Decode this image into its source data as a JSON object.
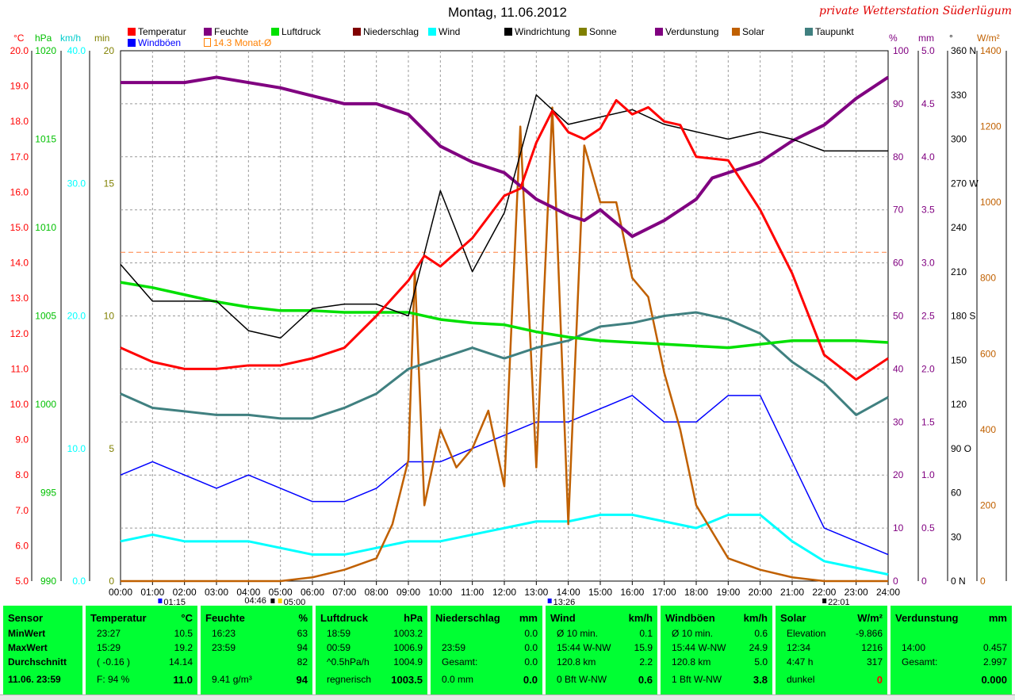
{
  "title": "Montag, 11.06.2012",
  "station": "private Wetterstation Süderlügum",
  "legend": [
    {
      "label": "Temperatur",
      "color": "#ff0000"
    },
    {
      "label": "Feuchte",
      "color": "#800080"
    },
    {
      "label": "Luftdruck",
      "color": "#00e000"
    },
    {
      "label": "Niederschlag",
      "color": "#800000"
    },
    {
      "label": "Wind",
      "color": "#00ffff"
    },
    {
      "label": "Windrichtung",
      "color": "#000000"
    },
    {
      "label": "Sonne",
      "color": "#808000"
    },
    {
      "label": "Verdunstung",
      "color": "#800080"
    },
    {
      "label": "Solar",
      "color": "#c06000"
    },
    {
      "label": "Taupunkt",
      "color": "#408080"
    },
    {
      "label": "Windböen",
      "color": "#0000ff"
    },
    {
      "label": "14.3 Monat-Ø",
      "color": "#ff8000"
    }
  ],
  "units": {
    "temp": "°C",
    "pressure": "hPa",
    "wind": "km/h",
    "sun": "min",
    "humidity": "%",
    "rain": "mm",
    "dir": "°",
    "solar": "W/m²"
  },
  "chart_data": {
    "type": "line",
    "x_ticks": [
      "00:00",
      "01:00",
      "02:00",
      "03:00",
      "04:00",
      "05:00",
      "06:00",
      "07:00",
      "08:00",
      "09:00",
      "10:00",
      "11:00",
      "12:00",
      "13:00",
      "14:00",
      "15:00",
      "16:00",
      "17:00",
      "18:00",
      "19:00",
      "20:00",
      "21:00",
      "22:00",
      "23:00",
      "24:00"
    ],
    "x_markers": [
      "01:15",
      "04:46",
      "05:00",
      "13:26",
      "22:01"
    ],
    "axes": {
      "temp": {
        "ticks": [
          "5.0",
          "6.0",
          "7.0",
          "8.0",
          "9.0",
          "10.0",
          "11.0",
          "12.0",
          "13.0",
          "14.0",
          "15.0",
          "16.0",
          "17.0",
          "18.0",
          "19.0",
          "20.0"
        ],
        "ylim": [
          5,
          20
        ],
        "color": "#ff0000"
      },
      "pressure": {
        "ticks": [
          "990",
          "995",
          "1000",
          "1005",
          "1010",
          "1015",
          "1020"
        ],
        "ylim": [
          990,
          1020
        ],
        "color": "#00c000"
      },
      "wind": {
        "ticks": [
          "0.0",
          "10.0",
          "20.0",
          "30.0",
          "40.0"
        ],
        "ylim": [
          0,
          40
        ],
        "color": "#00ffff"
      },
      "sun": {
        "ticks": [
          "0",
          "5",
          "10",
          "15",
          "20"
        ],
        "ylim": [
          0,
          20
        ],
        "color": "#808000"
      },
      "humidity": {
        "ticks": [
          "0",
          "10",
          "20",
          "30",
          "40",
          "50",
          "60",
          "70",
          "80",
          "90",
          "100"
        ],
        "ylim": [
          0,
          100
        ],
        "color": "#800080"
      },
      "rain": {
        "ticks": [
          "0",
          "0.5",
          "1.0",
          "1.5",
          "2.0",
          "2.5",
          "3.0",
          "3.5",
          "4.0",
          "4.5",
          "5.0"
        ],
        "ylim": [
          0,
          5
        ],
        "color": "#800080"
      },
      "dir": {
        "ticks": [
          "0",
          "30",
          "60",
          "90",
          "120",
          "150",
          "180",
          "210",
          "240",
          "270",
          "300",
          "330",
          "360"
        ],
        "labels": [
          "N",
          "",
          "",
          "O",
          "",
          "",
          "S",
          "",
          "",
          "W",
          "",
          "",
          "N"
        ],
        "ylim": [
          0,
          360
        ],
        "color": "#000000"
      },
      "solar": {
        "ticks": [
          "0",
          "200",
          "400",
          "600",
          "800",
          "1000",
          "1200",
          "1400"
        ],
        "ylim": [
          0,
          1400
        ],
        "color": "#c06000"
      }
    },
    "month_avg_temp": 14.3,
    "series": [
      {
        "name": "Temperatur",
        "axis": "temp",
        "color": "#ff0000",
        "x": [
          0,
          1,
          2,
          3,
          4,
          5,
          6,
          7,
          8,
          9,
          9.5,
          10,
          11,
          12,
          12.5,
          13,
          13.5,
          14,
          14.5,
          15,
          15.5,
          16,
          16.5,
          17,
          17.5,
          18,
          19,
          20,
          21,
          22,
          23,
          24
        ],
        "y": [
          11.6,
          11.2,
          11.0,
          11.0,
          11.1,
          11.1,
          11.3,
          11.6,
          12.5,
          13.5,
          14.2,
          13.9,
          14.7,
          15.9,
          16.1,
          17.4,
          18.3,
          17.7,
          17.5,
          17.8,
          18.6,
          18.2,
          18.4,
          18.0,
          17.9,
          17.0,
          16.9,
          15.5,
          13.7,
          11.4,
          10.7,
          11.3
        ]
      },
      {
        "name": "Feuchte",
        "axis": "humidity",
        "color": "#800080",
        "x": [
          0,
          2,
          3,
          5,
          7,
          8,
          9,
          10,
          11,
          12,
          13,
          14,
          14.5,
          15,
          16,
          17,
          18,
          18.5,
          19,
          20,
          21,
          22,
          23,
          24
        ],
        "y": [
          94,
          94,
          95,
          93,
          90,
          90,
          88,
          82,
          79,
          77,
          72,
          69,
          68,
          70,
          65,
          68,
          72,
          76,
          77,
          79,
          83,
          86,
          91,
          95
        ]
      },
      {
        "name": "Luftdruck",
        "axis": "pressure",
        "color": "#00e000",
        "x": [
          0,
          1,
          2,
          3,
          4,
          5,
          6,
          7,
          8,
          9,
          10,
          11,
          12,
          13,
          14,
          15,
          16,
          17,
          18,
          19,
          20,
          21,
          22,
          23,
          24
        ],
        "y": [
          1006.9,
          1006.6,
          1006.2,
          1005.8,
          1005.5,
          1005.3,
          1005.3,
          1005.2,
          1005.2,
          1005.2,
          1004.8,
          1004.6,
          1004.5,
          1004.1,
          1003.8,
          1003.6,
          1003.5,
          1003.4,
          1003.3,
          1003.2,
          1003.4,
          1003.6,
          1003.6,
          1003.6,
          1003.5
        ]
      },
      {
        "name": "Taupunkt",
        "axis": "temp",
        "color": "#408080",
        "x": [
          0,
          1,
          2,
          3,
          4,
          5,
          6,
          7,
          8,
          9,
          10,
          11,
          12,
          13,
          14,
          15,
          16,
          17,
          18,
          19,
          20,
          21,
          22,
          23,
          24
        ],
        "y": [
          10.3,
          9.9,
          9.8,
          9.7,
          9.7,
          9.6,
          9.6,
          9.9,
          10.3,
          11.0,
          11.3,
          11.6,
          11.3,
          11.6,
          11.8,
          12.2,
          12.3,
          12.5,
          12.6,
          12.4,
          12.0,
          11.2,
          10.6,
          9.7,
          10.2
        ]
      },
      {
        "name": "Windrichtung",
        "axis": "dir",
        "color": "#000000",
        "x": [
          0,
          1,
          2,
          3,
          4,
          5,
          6,
          7,
          8,
          9,
          10,
          11,
          12,
          13,
          14,
          15,
          16,
          17,
          18,
          19,
          20,
          21,
          22,
          23,
          24
        ],
        "y": [
          215,
          190,
          190,
          190,
          170,
          165,
          185,
          188,
          188,
          180,
          265,
          210,
          250,
          330,
          310,
          315,
          320,
          310,
          305,
          300,
          305,
          300,
          292,
          292,
          292
        ]
      },
      {
        "name": "Solar",
        "axis": "solar",
        "color": "#c06000",
        "x": [
          0,
          5,
          6,
          7,
          8,
          8.5,
          9,
          9.2,
          9.5,
          10,
          10.5,
          11,
          11.5,
          12,
          12.5,
          13,
          13.5,
          14,
          14.5,
          15,
          15.5,
          16,
          16.5,
          17,
          17.5,
          18,
          19,
          20,
          21,
          22,
          23,
          24
        ],
        "y": [
          0,
          0,
          10,
          30,
          60,
          150,
          320,
          820,
          200,
          400,
          300,
          350,
          450,
          250,
          1200,
          300,
          1250,
          150,
          1150,
          1000,
          1000,
          800,
          750,
          550,
          400,
          200,
          60,
          30,
          10,
          0,
          0,
          0
        ]
      },
      {
        "name": "Wind",
        "axis": "wind",
        "color": "#00ffff",
        "x": [
          0,
          1,
          2,
          3,
          4,
          5,
          6,
          7,
          8,
          9,
          10,
          11,
          12,
          13,
          14,
          15,
          16,
          17,
          18,
          19,
          20,
          21,
          22,
          23,
          24
        ],
        "y": [
          3,
          3.5,
          3,
          3,
          3,
          2.5,
          2,
          2,
          2.5,
          3,
          3,
          3.5,
          4,
          4.5,
          4.5,
          5,
          5,
          4.5,
          4,
          5,
          5,
          3,
          1.5,
          1,
          0.5
        ]
      },
      {
        "name": "Windböen",
        "axis": "wind",
        "color": "#0000ff",
        "x": [
          0,
          1,
          2,
          3,
          4,
          5,
          6,
          7,
          8,
          9,
          10,
          11,
          12,
          13,
          14,
          15,
          16,
          17,
          18,
          19,
          20,
          21,
          22,
          23,
          24
        ],
        "y": [
          8,
          9,
          8,
          7,
          8,
          7,
          6,
          6,
          7,
          9,
          9,
          10,
          11,
          12,
          12,
          13,
          14,
          12,
          12,
          14,
          14,
          9,
          4,
          3,
          2
        ]
      }
    ]
  },
  "stats": {
    "labels": [
      "Sensor",
      "MinWert",
      "MaxWert",
      "Durchschnitt",
      "11.06. 23:59"
    ],
    "panels": [
      {
        "head": [
          "Temperatur",
          "°C"
        ],
        "rows": [
          [
            "23:27",
            "10.5"
          ],
          [
            "15:29",
            "19.2"
          ],
          [
            "( -0.16 )",
            "14.14"
          ],
          [
            "F: 94 %",
            "11.0"
          ]
        ]
      },
      {
        "head": [
          "Feuchte",
          "%"
        ],
        "rows": [
          [
            "16:23",
            "63"
          ],
          [
            "23:59",
            "94"
          ],
          [
            "",
            "82"
          ],
          [
            "9.41 g/m³",
            "94"
          ]
        ]
      },
      {
        "head": [
          "Luftdruck",
          "hPa"
        ],
        "rows": [
          [
            "18:59",
            "1003.2"
          ],
          [
            "00:59",
            "1006.9"
          ],
          [
            "^0.5hPa/h",
            "1004.9"
          ],
          [
            "regnerisch",
            "1003.5"
          ]
        ]
      },
      {
        "head": [
          "Niederschlag",
          "mm"
        ],
        "rows": [
          [
            "",
            "0.0"
          ],
          [
            "23:59",
            "0.0"
          ],
          [
            "Gesamt:",
            "0.0"
          ],
          [
            "0.0 mm",
            "0.0"
          ]
        ]
      },
      {
        "head": [
          "Wind",
          "km/h"
        ],
        "rows": [
          [
            "Ø 10 min.",
            "0.1"
          ],
          [
            "15:44   W-NW",
            "15.9"
          ],
          [
            "120.8 km",
            "2.2"
          ],
          [
            "0 Bft W-NW",
            "0.6"
          ]
        ]
      },
      {
        "head": [
          "Windböen",
          "km/h"
        ],
        "rows": [
          [
            "Ø 10 min.",
            "0.6"
          ],
          [
            "15:44   W-NW",
            "24.9"
          ],
          [
            "120.8 km",
            "5.0"
          ],
          [
            "1 Bft W-NW",
            "3.8"
          ]
        ]
      },
      {
        "head": [
          "Solar",
          "W/m²"
        ],
        "rows": [
          [
            "Elevation",
            "-9.866"
          ],
          [
            "12:34",
            "1216"
          ],
          [
            "4:47 h",
            "317"
          ],
          [
            "dunkel",
            "0"
          ]
        ]
      },
      {
        "head": [
          "Verdunstung",
          "mm"
        ],
        "rows": [
          [
            "",
            ""
          ],
          [
            "14:00",
            "0.457"
          ],
          [
            "Gesamt:",
            "2.997"
          ],
          [
            "",
            "0.000"
          ]
        ]
      }
    ]
  }
}
